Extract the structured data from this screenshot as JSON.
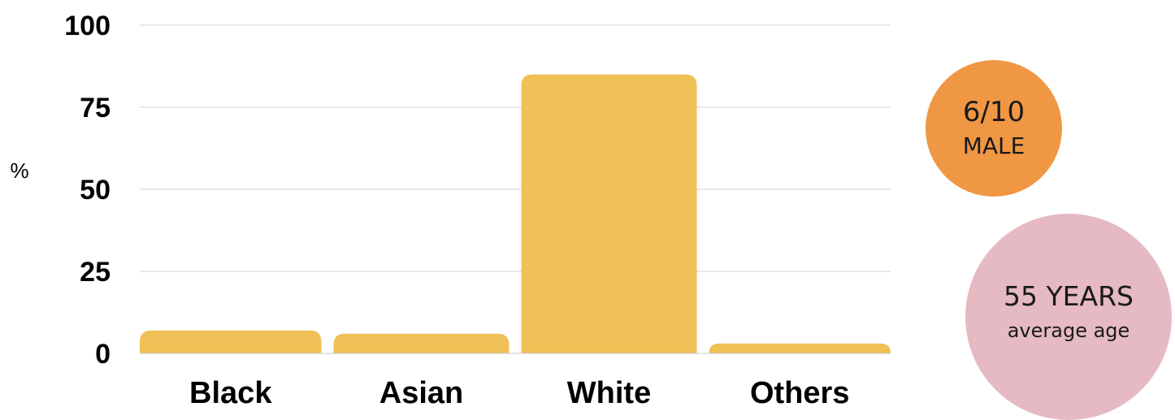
{
  "chart_data": {
    "type": "bar",
    "categories": [
      "Black",
      "Asian",
      "White",
      "Others"
    ],
    "values": [
      7,
      6,
      85,
      3
    ],
    "ylabel": "%",
    "ylim": [
      0,
      100
    ],
    "yticks": [
      0,
      25,
      50,
      75,
      100
    ],
    "grid": true,
    "bar_color": "#EFC055"
  },
  "stats": {
    "male": {
      "value": "6/10",
      "label": "MALE",
      "color": "#F09744"
    },
    "age": {
      "value": "55 YEARS",
      "label": "average age",
      "color": "#E6BAC3"
    }
  }
}
